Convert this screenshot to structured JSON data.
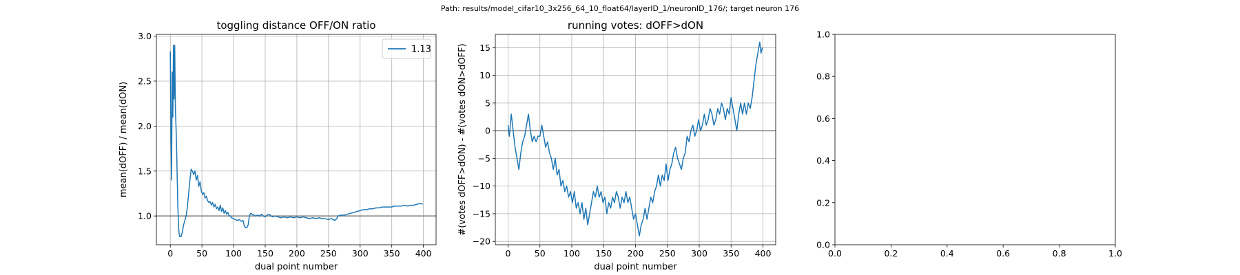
{
  "suptitle": "Path: results/model_cifar10_3x256_64_10_float64/layerID_1/neuronID_176/; target neuron 176",
  "colors": {
    "series": "#1f77b4",
    "refline": "#808080",
    "grid": "#b0b0b0",
    "axes": "#000000"
  },
  "chart_data": [
    {
      "type": "line",
      "title": "toggling distance OFF/ON ratio",
      "xlabel": "dual point number",
      "ylabel": "mean(dOFF) / mean(dON)",
      "xlim": [
        -22,
        420
      ],
      "ylim": [
        0.68,
        3.02
      ],
      "xticks": [
        0,
        50,
        100,
        150,
        200,
        250,
        300,
        350,
        400
      ],
      "yticks": [
        1.0,
        1.5,
        2.0,
        2.5,
        3.0
      ],
      "ytick_labels": [
        "1.0",
        "1.5",
        "2.0",
        "2.5",
        "3.0"
      ],
      "grid": true,
      "hline": 1.0,
      "legend": {
        "position": "top-right",
        "entries": [
          "1.13"
        ]
      },
      "series": [
        {
          "name": "1.13",
          "points": [
            [
              0,
              2.83
            ],
            [
              1,
              1.9
            ],
            [
              2,
              1.4
            ],
            [
              3,
              2.6
            ],
            [
              4,
              2.1
            ],
            [
              5,
              2.9
            ],
            [
              6,
              2.3
            ],
            [
              7,
              2.9
            ],
            [
              8,
              2.2
            ],
            [
              9,
              2.0
            ],
            [
              10,
              1.75
            ],
            [
              11,
              1.4
            ],
            [
              12,
              1.1
            ],
            [
              13,
              0.88
            ],
            [
              14,
              0.8
            ],
            [
              15,
              0.77
            ],
            [
              17,
              0.77
            ],
            [
              19,
              0.82
            ],
            [
              21,
              0.9
            ],
            [
              23,
              0.95
            ],
            [
              25,
              1.0
            ],
            [
              27,
              1.1
            ],
            [
              29,
              1.25
            ],
            [
              31,
              1.4
            ],
            [
              33,
              1.52
            ],
            [
              35,
              1.5
            ],
            [
              37,
              1.46
            ],
            [
              39,
              1.5
            ],
            [
              41,
              1.4
            ],
            [
              43,
              1.45
            ],
            [
              45,
              1.33
            ],
            [
              47,
              1.38
            ],
            [
              49,
              1.28
            ],
            [
              51,
              1.24
            ],
            [
              53,
              1.26
            ],
            [
              55,
              1.2
            ],
            [
              57,
              1.22
            ],
            [
              59,
              1.17
            ],
            [
              61,
              1.15
            ],
            [
              63,
              1.16
            ],
            [
              65,
              1.12
            ],
            [
              67,
              1.15
            ],
            [
              69,
              1.1
            ],
            [
              71,
              1.13
            ],
            [
              73,
              1.08
            ],
            [
              75,
              1.1
            ],
            [
              77,
              1.06
            ],
            [
              79,
              1.12
            ],
            [
              81,
              1.05
            ],
            [
              83,
              1.09
            ],
            [
              85,
              1.03
            ],
            [
              87,
              1.06
            ],
            [
              89,
              1.02
            ],
            [
              91,
              1.04
            ],
            [
              93,
              1.0
            ],
            [
              95,
              1.0
            ],
            [
              97,
              0.98
            ],
            [
              100,
              0.97
            ],
            [
              103,
              0.96
            ],
            [
              106,
              0.95
            ],
            [
              109,
              0.96
            ],
            [
              112,
              0.94
            ],
            [
              115,
              0.95
            ],
            [
              117,
              0.89
            ],
            [
              119,
              0.87
            ],
            [
              121,
              0.87
            ],
            [
              123,
              0.9
            ],
            [
              125,
              1.0
            ],
            [
              127,
              1.03
            ],
            [
              129,
              1.02
            ],
            [
              132,
              1.01
            ],
            [
              135,
              1.0
            ],
            [
              138,
              1.01
            ],
            [
              141,
              1.0
            ],
            [
              144,
              1.02
            ],
            [
              147,
              1.0
            ],
            [
              150,
              0.99
            ],
            [
              153,
              1.01
            ],
            [
              156,
              1.02
            ],
            [
              159,
              1.0
            ],
            [
              162,
              0.99
            ],
            [
              165,
              1.0
            ],
            [
              170,
              0.99
            ],
            [
              175,
              0.98
            ],
            [
              180,
              0.99
            ],
            [
              185,
              0.98
            ],
            [
              190,
              0.99
            ],
            [
              195,
              0.98
            ],
            [
              200,
              0.99
            ],
            [
              205,
              0.98
            ],
            [
              210,
              0.99
            ],
            [
              215,
              0.98
            ],
            [
              220,
              0.97
            ],
            [
              225,
              0.98
            ],
            [
              230,
              0.97
            ],
            [
              235,
              0.98
            ],
            [
              240,
              0.97
            ],
            [
              245,
              0.97
            ],
            [
              250,
              0.96
            ],
            [
              255,
              0.97
            ],
            [
              260,
              0.95
            ],
            [
              263,
              0.97
            ],
            [
              265,
              1.0
            ],
            [
              270,
              1.01
            ],
            [
              275,
              1.01
            ],
            [
              280,
              1.02
            ],
            [
              285,
              1.03
            ],
            [
              290,
              1.04
            ],
            [
              295,
              1.05
            ],
            [
              300,
              1.06
            ],
            [
              305,
              1.07
            ],
            [
              310,
              1.07
            ],
            [
              315,
              1.08
            ],
            [
              320,
              1.08
            ],
            [
              325,
              1.09
            ],
            [
              330,
              1.09
            ],
            [
              335,
              1.1
            ],
            [
              340,
              1.1
            ],
            [
              345,
              1.1
            ],
            [
              350,
              1.1
            ],
            [
              355,
              1.11
            ],
            [
              360,
              1.11
            ],
            [
              365,
              1.11
            ],
            [
              370,
              1.12
            ],
            [
              375,
              1.11
            ],
            [
              380,
              1.12
            ],
            [
              385,
              1.12
            ],
            [
              390,
              1.13
            ],
            [
              395,
              1.14
            ],
            [
              399,
              1.13
            ]
          ]
        }
      ]
    },
    {
      "type": "line",
      "title": "running votes: dOFF>dON",
      "xlabel": "dual point number",
      "ylabel": "#(votes dOFF>dON) - #(votes dON>dOFF)",
      "xlim": [
        -20,
        420
      ],
      "ylim": [
        -20.6,
        17.4
      ],
      "xticks": [
        0,
        50,
        100,
        150,
        200,
        250,
        300,
        350,
        400
      ],
      "yticks": [
        -20,
        -15,
        -10,
        -5,
        0,
        5,
        10,
        15
      ],
      "ytick_labels": [
        "−20",
        "−15",
        "−10",
        "−5",
        "0",
        "5",
        "10",
        "15"
      ],
      "grid": true,
      "hline": 0,
      "series": [
        {
          "name": "",
          "points": [
            [
              0,
              1
            ],
            [
              2,
              -1
            ],
            [
              5,
              3
            ],
            [
              8,
              0
            ],
            [
              11,
              -3
            ],
            [
              14,
              -5
            ],
            [
              17,
              -7
            ],
            [
              20,
              -4
            ],
            [
              23,
              -2
            ],
            [
              26,
              -1
            ],
            [
              29,
              1
            ],
            [
              32,
              3
            ],
            [
              35,
              0
            ],
            [
              38,
              -2
            ],
            [
              41,
              -1
            ],
            [
              44,
              -2
            ],
            [
              47,
              -1
            ],
            [
              50,
              -1
            ],
            [
              53,
              1
            ],
            [
              56,
              -1
            ],
            [
              59,
              -3
            ],
            [
              62,
              -2
            ],
            [
              65,
              -4
            ],
            [
              68,
              -5
            ],
            [
              71,
              -7
            ],
            [
              74,
              -5
            ],
            [
              77,
              -8
            ],
            [
              80,
              -7
            ],
            [
              83,
              -10
            ],
            [
              86,
              -9
            ],
            [
              89,
              -11
            ],
            [
              92,
              -10
            ],
            [
              95,
              -12
            ],
            [
              98,
              -11
            ],
            [
              101,
              -13
            ],
            [
              104,
              -11
            ],
            [
              107,
              -14
            ],
            [
              110,
              -13
            ],
            [
              113,
              -15
            ],
            [
              116,
              -13
            ],
            [
              119,
              -16
            ],
            [
              122,
              -14
            ],
            [
              125,
              -17
            ],
            [
              128,
              -15
            ],
            [
              131,
              -13
            ],
            [
              134,
              -11
            ],
            [
              137,
              -12
            ],
            [
              140,
              -10
            ],
            [
              143,
              -12
            ],
            [
              146,
              -11
            ],
            [
              149,
              -13
            ],
            [
              152,
              -12
            ],
            [
              155,
              -15
            ],
            [
              158,
              -13
            ],
            [
              161,
              -14
            ],
            [
              164,
              -12
            ],
            [
              167,
              -13
            ],
            [
              170,
              -11
            ],
            [
              173,
              -12
            ],
            [
              176,
              -14
            ],
            [
              179,
              -12
            ],
            [
              182,
              -13
            ],
            [
              185,
              -11
            ],
            [
              188,
              -13
            ],
            [
              191,
              -12
            ],
            [
              194,
              -14
            ],
            [
              197,
              -16
            ],
            [
              200,
              -15
            ],
            [
              203,
              -17
            ],
            [
              206,
              -19
            ],
            [
              209,
              -17
            ],
            [
              212,
              -16
            ],
            [
              215,
              -14
            ],
            [
              218,
              -16
            ],
            [
              221,
              -14
            ],
            [
              224,
              -12
            ],
            [
              227,
              -13
            ],
            [
              230,
              -11
            ],
            [
              233,
              -10
            ],
            [
              236,
              -8
            ],
            [
              239,
              -10
            ],
            [
              242,
              -8
            ],
            [
              245,
              -9
            ],
            [
              248,
              -6
            ],
            [
              251,
              -9
            ],
            [
              254,
              -7
            ],
            [
              257,
              -6
            ],
            [
              260,
              -4
            ],
            [
              263,
              -3
            ],
            [
              266,
              -5
            ],
            [
              269,
              -6
            ],
            [
              272,
              -7
            ],
            [
              275,
              -5
            ],
            [
              278,
              -4
            ],
            [
              281,
              -1
            ],
            [
              284,
              -2
            ],
            [
              287,
              0
            ],
            [
              290,
              1
            ],
            [
              293,
              -1
            ],
            [
              296,
              0
            ],
            [
              299,
              2
            ],
            [
              302,
              0
            ],
            [
              305,
              1
            ],
            [
              308,
              3
            ],
            [
              311,
              1
            ],
            [
              314,
              2
            ],
            [
              317,
              4
            ],
            [
              320,
              3
            ],
            [
              323,
              1
            ],
            [
              326,
              2
            ],
            [
              329,
              4
            ],
            [
              332,
              3
            ],
            [
              335,
              5
            ],
            [
              338,
              4
            ],
            [
              341,
              2
            ],
            [
              344,
              4
            ],
            [
              347,
              3
            ],
            [
              350,
              6
            ],
            [
              353,
              4
            ],
            [
              356,
              2
            ],
            [
              359,
              0
            ],
            [
              362,
              3
            ],
            [
              365,
              5
            ],
            [
              368,
              3
            ],
            [
              371,
              5
            ],
            [
              374,
              3
            ],
            [
              377,
              5
            ],
            [
              380,
              4
            ],
            [
              383,
              6
            ],
            [
              386,
              9
            ],
            [
              389,
              12
            ],
            [
              392,
              14
            ],
            [
              395,
              16
            ],
            [
              397,
              14
            ],
            [
              399,
              15
            ]
          ]
        }
      ]
    },
    {
      "type": "line",
      "title": "",
      "xlabel": "",
      "ylabel": "",
      "xlim": [
        0,
        1
      ],
      "ylim": [
        0,
        1
      ],
      "xticks": [
        0,
        0.2,
        0.4,
        0.6,
        0.8,
        1.0
      ],
      "yticks": [
        0,
        0.2,
        0.4,
        0.6,
        0.8,
        1.0
      ],
      "xtick_labels": [
        "0.0",
        "0.2",
        "0.4",
        "0.6",
        "0.8",
        "1.0"
      ],
      "ytick_labels": [
        "0.0",
        "0.2",
        "0.4",
        "0.6",
        "0.8",
        "1.0"
      ],
      "grid": false,
      "series": []
    }
  ]
}
